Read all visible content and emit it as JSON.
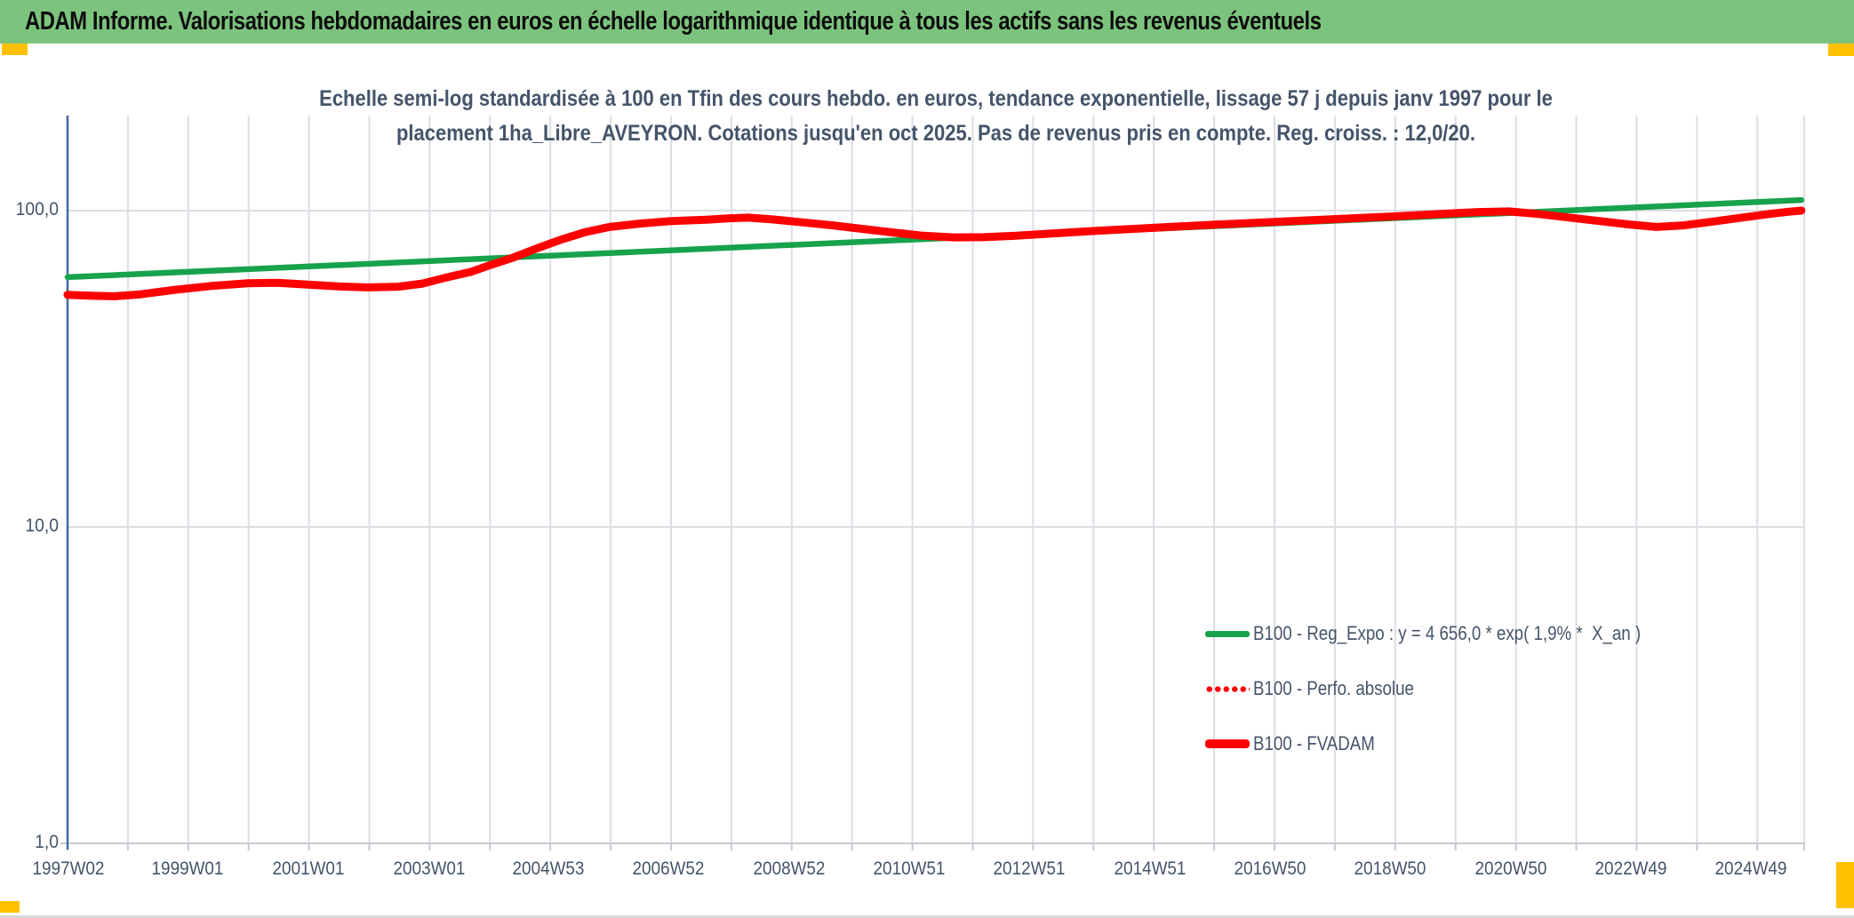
{
  "title_bar": {
    "text": "ADAM Informe. Valorisations hebdomadaires en euros en échelle logarithmique identique à tous les actifs sans les revenus éventuels",
    "bg_color": "#7CC47E"
  },
  "corner_markers": {
    "color": "#FFC000"
  },
  "colors": {
    "green_series": "#17A24C",
    "red_series": "#FE0000",
    "axis_text": "#44546A",
    "gridline": "#DCDEE4",
    "y_axis_line": "#44699E",
    "x_axis_line": "#C7CAD1"
  },
  "chart_data": {
    "type": "line",
    "title_lines": [
      "Echelle semi-log standardisée à 100 en Tfin des cours hebdo. en euros, tendance exponentielle, lissage 57 j depuis janv 1997 pour le",
      "placement 1ha_Libre_AVEYRON. Cotations jusqu'en oct 2025. Pas de revenus pris en compte. Reg. croiss. : 12,0/20."
    ],
    "y_axis": {
      "scale": "log10",
      "tick_labels": [
        "100,0",
        "10,0",
        "1,0"
      ],
      "tick_values": [
        100,
        10,
        1
      ],
      "range": [
        1,
        200
      ]
    },
    "x_axis": {
      "tick_labels": [
        "1997W02",
        "1999W01",
        "2001W01",
        "2003W01",
        "2004W53",
        "2006W52",
        "2008W52",
        "2010W51",
        "2012W51",
        "2014W51",
        "2016W50",
        "2018W50",
        "2020W50",
        "2022W49",
        "2024W49"
      ],
      "tick_years": [
        1997.04,
        1999.01,
        2001.01,
        2003.01,
        2004.99,
        2006.98,
        2008.98,
        2010.96,
        2012.96,
        2014.96,
        2016.94,
        2018.94,
        2020.94,
        2022.92,
        2024.92
      ],
      "range_years": [
        1997.02,
        2025.78
      ],
      "gridline_every_years": 1
    },
    "legend": {
      "position": "inside-right",
      "items": [
        {
          "label": "B100 - Reg_Expo : y = 4 656,0 * exp( 1,9% *  X_an )",
          "color": "#17A24C",
          "style": "solid"
        },
        {
          "label": "B100 - Perfo. absolue",
          "color": "#FE0000",
          "style": "dotted"
        },
        {
          "label": "B100 - FVADAM",
          "color": "#FE0000",
          "style": "solid"
        }
      ]
    },
    "series": [
      {
        "name": "B100 - Reg_Expo",
        "color": "#17A24C",
        "style": "solid",
        "points": [
          [
            1997.02,
            61.6
          ],
          [
            2025.75,
            108.0
          ]
        ]
      },
      {
        "name": "B100 - Perfo. absolue",
        "color": "#FE0000",
        "style": "dotted",
        "points": [
          [
            1997.02,
            54.2
          ],
          [
            1997.4,
            53.8
          ],
          [
            1997.8,
            53.6
          ],
          [
            1998.2,
            54.3
          ],
          [
            1998.8,
            56.2
          ],
          [
            1999.4,
            57.8
          ],
          [
            2000.0,
            58.9
          ],
          [
            2000.5,
            59.1
          ],
          [
            2001.0,
            58.4
          ],
          [
            2001.5,
            57.6
          ],
          [
            2002.0,
            57.2
          ],
          [
            2002.5,
            57.5
          ],
          [
            2002.9,
            58.8
          ],
          [
            2003.3,
            61.5
          ],
          [
            2003.7,
            64.0
          ],
          [
            2004.0,
            67.0
          ],
          [
            2004.4,
            71.0
          ],
          [
            2004.8,
            76.0
          ],
          [
            2005.2,
            81.0
          ],
          [
            2005.6,
            85.5
          ],
          [
            2006.0,
            88.8
          ],
          [
            2006.5,
            91.0
          ],
          [
            2007.0,
            92.6
          ],
          [
            2007.6,
            93.6
          ],
          [
            2008.0,
            94.6
          ],
          [
            2008.3,
            95.0
          ],
          [
            2008.7,
            93.8
          ],
          [
            2009.2,
            91.8
          ],
          [
            2009.7,
            89.8
          ],
          [
            2010.2,
            87.5
          ],
          [
            2010.7,
            85.3
          ],
          [
            2011.2,
            83.3
          ],
          [
            2011.7,
            82.3
          ],
          [
            2012.2,
            82.4
          ],
          [
            2012.7,
            83.2
          ],
          [
            2013.3,
            84.6
          ],
          [
            2014.0,
            86.2
          ],
          [
            2015.0,
            88.2
          ],
          [
            2016.0,
            90.2
          ],
          [
            2017.0,
            92.1
          ],
          [
            2018.0,
            94.0
          ],
          [
            2019.0,
            95.9
          ],
          [
            2019.8,
            97.7
          ],
          [
            2020.4,
            99.0
          ],
          [
            2020.9,
            99.4
          ],
          [
            2021.4,
            97.6
          ],
          [
            2021.9,
            95.1
          ],
          [
            2022.4,
            92.7
          ],
          [
            2022.9,
            90.4
          ],
          [
            2023.35,
            88.8
          ],
          [
            2023.8,
            89.8
          ],
          [
            2024.3,
            92.4
          ],
          [
            2024.8,
            95.2
          ],
          [
            2025.2,
            97.5
          ],
          [
            2025.55,
            99.2
          ],
          [
            2025.75,
            100.0
          ]
        ]
      },
      {
        "name": "B100 - FVADAM",
        "color": "#FE0000",
        "style": "solid",
        "points": [
          [
            1997.02,
            54.2
          ],
          [
            1997.4,
            53.8
          ],
          [
            1997.8,
            53.6
          ],
          [
            1998.2,
            54.3
          ],
          [
            1998.8,
            56.2
          ],
          [
            1999.4,
            57.8
          ],
          [
            2000.0,
            58.9
          ],
          [
            2000.5,
            59.1
          ],
          [
            2001.0,
            58.4
          ],
          [
            2001.5,
            57.6
          ],
          [
            2002.0,
            57.2
          ],
          [
            2002.5,
            57.5
          ],
          [
            2002.9,
            58.8
          ],
          [
            2003.3,
            61.5
          ],
          [
            2003.7,
            64.0
          ],
          [
            2004.0,
            67.0
          ],
          [
            2004.4,
            71.0
          ],
          [
            2004.8,
            76.0
          ],
          [
            2005.2,
            81.0
          ],
          [
            2005.6,
            85.5
          ],
          [
            2006.0,
            88.8
          ],
          [
            2006.5,
            91.0
          ],
          [
            2007.0,
            92.6
          ],
          [
            2007.6,
            93.6
          ],
          [
            2008.0,
            94.6
          ],
          [
            2008.3,
            95.0
          ],
          [
            2008.7,
            93.8
          ],
          [
            2009.2,
            91.8
          ],
          [
            2009.7,
            89.8
          ],
          [
            2010.2,
            87.5
          ],
          [
            2010.7,
            85.3
          ],
          [
            2011.2,
            83.3
          ],
          [
            2011.7,
            82.3
          ],
          [
            2012.2,
            82.4
          ],
          [
            2012.7,
            83.2
          ],
          [
            2013.3,
            84.6
          ],
          [
            2014.0,
            86.2
          ],
          [
            2015.0,
            88.2
          ],
          [
            2016.0,
            90.2
          ],
          [
            2017.0,
            92.1
          ],
          [
            2018.0,
            94.0
          ],
          [
            2019.0,
            95.9
          ],
          [
            2019.8,
            97.7
          ],
          [
            2020.4,
            99.0
          ],
          [
            2020.9,
            99.4
          ],
          [
            2021.4,
            97.6
          ],
          [
            2021.9,
            95.1
          ],
          [
            2022.4,
            92.7
          ],
          [
            2022.9,
            90.4
          ],
          [
            2023.35,
            88.8
          ],
          [
            2023.8,
            89.8
          ],
          [
            2024.3,
            92.4
          ],
          [
            2024.8,
            95.2
          ],
          [
            2025.2,
            97.5
          ],
          [
            2025.55,
            99.2
          ],
          [
            2025.75,
            100.0
          ]
        ]
      }
    ]
  }
}
